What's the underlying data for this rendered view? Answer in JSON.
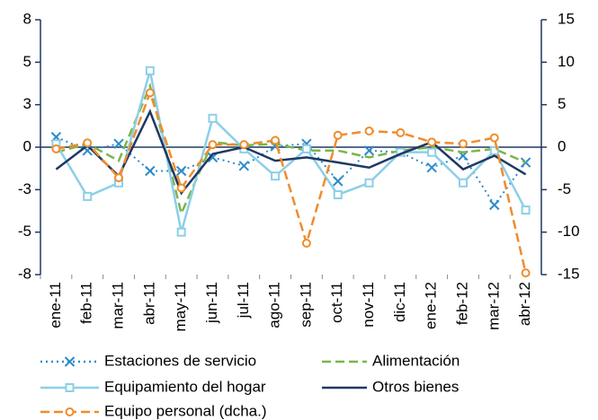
{
  "chart_data": {
    "type": "line",
    "categories": [
      "ene-11",
      "feb-11",
      "mar-11",
      "abr-11",
      "may-11",
      "jun-11",
      "jul-11",
      "ago-11",
      "sep-11",
      "oct-11",
      "nov-11",
      "dic-11",
      "ene-12",
      "feb-12",
      "mar-12",
      "abr-12"
    ],
    "ylim": [
      -7.5,
      7.5
    ],
    "yticks": [
      {
        "value": -7.5,
        "label": "-8"
      },
      {
        "value": -5,
        "label": "-5"
      },
      {
        "value": -2.5,
        "label": "-3"
      },
      0,
      {
        "value": 2.5,
        "label": "3"
      },
      5,
      {
        "value": 7.5,
        "label": "8"
      }
    ],
    "y2lim": [
      -15,
      15
    ],
    "y2ticks": [
      -15,
      -10,
      -5,
      0,
      5,
      10,
      15
    ],
    "series": [
      {
        "name": "Estaciones de servicio",
        "color": "#2e8bc9",
        "marker": "x",
        "dash": "dotted",
        "values": [
          0.6,
          -0.2,
          0.2,
          -1.4,
          -1.4,
          -0.6,
          -1.1,
          0.05,
          0.2,
          -2.0,
          -0.2,
          -0.3,
          -1.2,
          -0.5,
          -3.4,
          -0.9
        ]
      },
      {
        "name": "Alimentación",
        "color": "#7ab648",
        "marker": "none",
        "dash": "dashed",
        "values": [
          -0.3,
          0.2,
          -0.8,
          3.6,
          -3.9,
          0.3,
          0.1,
          0.2,
          -0.2,
          -0.2,
          -0.6,
          -0.2,
          0,
          -0.3,
          -0.1,
          -0.9
        ]
      },
      {
        "name": "Equipamiento del hogar",
        "color": "#8ccfe8",
        "marker": "square",
        "dash": "solid",
        "values": [
          0.2,
          -2.9,
          -2.1,
          4.5,
          -5.0,
          1.7,
          -0.1,
          -1.7,
          -0.1,
          -2.8,
          -2.1,
          -0.3,
          -0.3,
          -2.1,
          -0.2,
          -3.7
        ]
      },
      {
        "name": "Otros bienes",
        "color": "#1f3864",
        "marker": "none",
        "dash": "solid",
        "values": [
          -1.3,
          0.1,
          -1.7,
          2.1,
          -2.7,
          -0.4,
          0,
          -0.8,
          -0.6,
          -0.9,
          -1.2,
          -0.4,
          0.3,
          -1.3,
          -0.5,
          -1.6
        ]
      },
      {
        "name": "Equipo personal (dcha.)",
        "color": "#f08c2b",
        "marker": "circle",
        "dash": "dashed",
        "axis": "y2",
        "values": [
          -0.2,
          0.5,
          -3.6,
          6.4,
          -4.8,
          0.3,
          0.3,
          0.8,
          -11.3,
          1.4,
          1.9,
          1.7,
          0.6,
          0.4,
          1.1,
          -14.8
        ]
      }
    ]
  }
}
